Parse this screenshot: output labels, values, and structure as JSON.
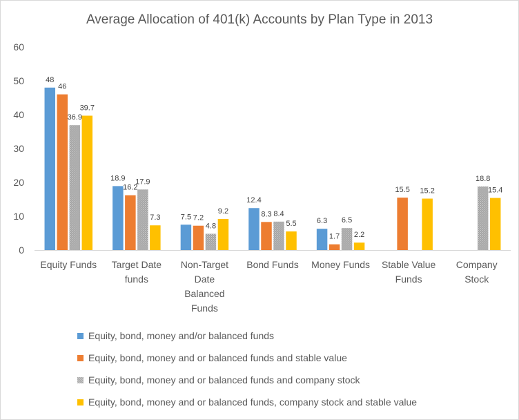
{
  "chart_data": {
    "type": "bar",
    "title": "Average Allocation of 401(k) Accounts by Plan Type in 2013",
    "xlabel": "",
    "ylabel": "",
    "ylim": [
      0,
      60
    ],
    "yticks": [
      0,
      10,
      20,
      30,
      40,
      50,
      60
    ],
    "grid": false,
    "legend_position": "bottom",
    "categories": [
      [
        "Equity Funds"
      ],
      [
        "Target Date",
        "funds"
      ],
      [
        "Non-Target",
        "Date",
        "Balanced",
        "Funds"
      ],
      [
        "Bond Funds"
      ],
      [
        "Money Funds"
      ],
      [
        "Stable Value",
        "Funds"
      ],
      [
        "Company",
        "Stock"
      ]
    ],
    "series": [
      {
        "name": "Equity, bond, money and/or balanced funds",
        "color": "#5b9bd5",
        "pattern": false,
        "values": [
          48,
          18.9,
          7.5,
          12.4,
          6.3,
          null,
          null
        ]
      },
      {
        "name": "Equity, bond, money and or balanced funds and stable value",
        "color": "#ed7d31",
        "pattern": false,
        "values": [
          46,
          16.2,
          7.2,
          8.3,
          1.7,
          15.5,
          null
        ]
      },
      {
        "name": "Equity, bond, money and or balanced funds and company stock",
        "color": "#a5a5a5",
        "pattern": true,
        "values": [
          36.9,
          17.9,
          4.8,
          8.4,
          6.5,
          null,
          18.8
        ]
      },
      {
        "name": "Equity, bond, money and or balanced funds, company stock and stable value",
        "color": "#ffc000",
        "pattern": false,
        "values": [
          39.7,
          7.3,
          9.2,
          5.5,
          2.2,
          15.2,
          15.4
        ]
      }
    ],
    "data_labels": [
      [
        "48",
        "18.9",
        "7.5",
        "12.4",
        "6.3",
        "",
        ""
      ],
      [
        "46",
        "16.2",
        "7.2",
        "8.3",
        "1.7",
        "15.5",
        ""
      ],
      [
        "36.9",
        "17.9",
        "4.8",
        "8.4",
        "6.5",
        "",
        "18.8"
      ],
      [
        "39.7",
        "7.3",
        "9.2",
        "5.5",
        "2.2",
        "15.2",
        "15.4"
      ]
    ]
  }
}
